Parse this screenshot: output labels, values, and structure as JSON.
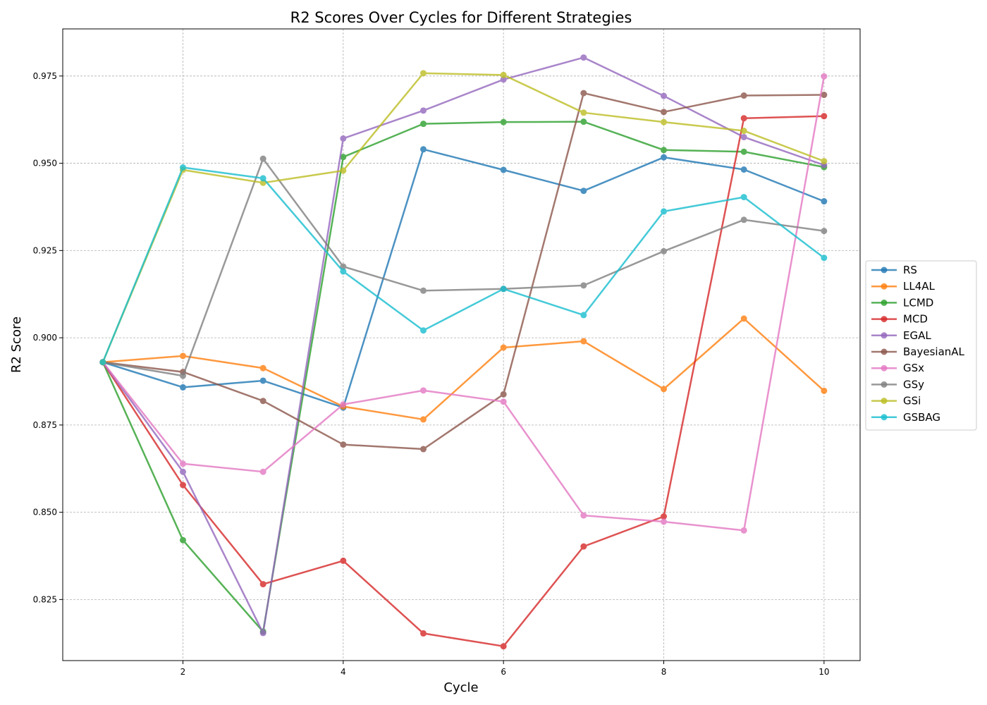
{
  "chart_data": {
    "type": "line",
    "title": "R2 Scores Over Cycles for Different Strategies",
    "xlabel": "Cycle",
    "ylabel": "R2 Score",
    "xlim": [
      0.5,
      10.45
    ],
    "ylim": [
      0.8075,
      0.9885
    ],
    "xticks": [
      2,
      4,
      6,
      8,
      10
    ],
    "yticks": [
      0.825,
      0.85,
      0.875,
      0.9,
      0.925,
      0.95,
      0.975
    ],
    "ytick_labels": [
      "0.825",
      "0.850",
      "0.875",
      "0.900",
      "0.925",
      "0.950",
      "0.975"
    ],
    "grid": true,
    "legend_position": "center-right outside",
    "x": [
      1,
      2,
      3,
      4,
      5,
      6,
      7,
      8,
      9,
      10
    ],
    "series": [
      {
        "name": "RS",
        "color": "#1f77b4",
        "values": [
          0.893,
          0.8858,
          0.8877,
          0.88,
          0.954,
          0.9481,
          0.9421,
          0.9517,
          0.9482,
          0.9391
        ]
      },
      {
        "name": "LL4AL",
        "color": "#ff7f0e",
        "values": [
          0.893,
          0.8948,
          0.8913,
          0.8803,
          0.8766,
          0.8972,
          0.899,
          0.8853,
          0.9055,
          0.8848
        ]
      },
      {
        "name": "LCMD",
        "color": "#2ca02c",
        "values": [
          0.893,
          0.842,
          0.8158,
          0.9518,
          0.9613,
          0.9618,
          0.9619,
          0.9538,
          0.9533,
          0.9489
        ]
      },
      {
        "name": "MCD",
        "color": "#d62728",
        "values": [
          0.893,
          0.8578,
          0.8294,
          0.8361,
          0.8153,
          0.8116,
          0.8402,
          0.8488,
          0.9629,
          0.9635
        ]
      },
      {
        "name": "EGAL",
        "color": "#9467bd",
        "values": [
          0.893,
          0.8616,
          0.8154,
          0.9571,
          0.9651,
          0.974,
          0.9803,
          0.9693,
          0.9575,
          0.9495
        ]
      },
      {
        "name": "BayesianAL",
        "color": "#8c564b",
        "values": [
          0.893,
          0.8902,
          0.8819,
          0.8694,
          0.8681,
          0.8838,
          0.9701,
          0.9647,
          0.9694,
          0.9696
        ]
      },
      {
        "name": "GSx",
        "color": "#e377c2",
        "values": [
          0.893,
          0.8639,
          0.8616,
          0.8809,
          0.8849,
          0.8817,
          0.8491,
          0.8473,
          0.8448,
          0.9749
        ]
      },
      {
        "name": "GSy",
        "color": "#7f7f7f",
        "values": [
          0.893,
          0.8891,
          0.9513,
          0.9204,
          0.9135,
          0.914,
          0.915,
          0.9248,
          0.9338,
          0.9306
        ]
      },
      {
        "name": "GSi",
        "color": "#bcbd22",
        "values": [
          0.893,
          0.9481,
          0.9444,
          0.9479,
          0.9758,
          0.9753,
          0.9645,
          0.9618,
          0.9593,
          0.9506
        ]
      },
      {
        "name": "GSBAG",
        "color": "#17becf",
        "values": [
          0.893,
          0.9488,
          0.9457,
          0.919,
          0.9021,
          0.914,
          0.9065,
          0.9362,
          0.9403,
          0.9229
        ]
      }
    ]
  }
}
